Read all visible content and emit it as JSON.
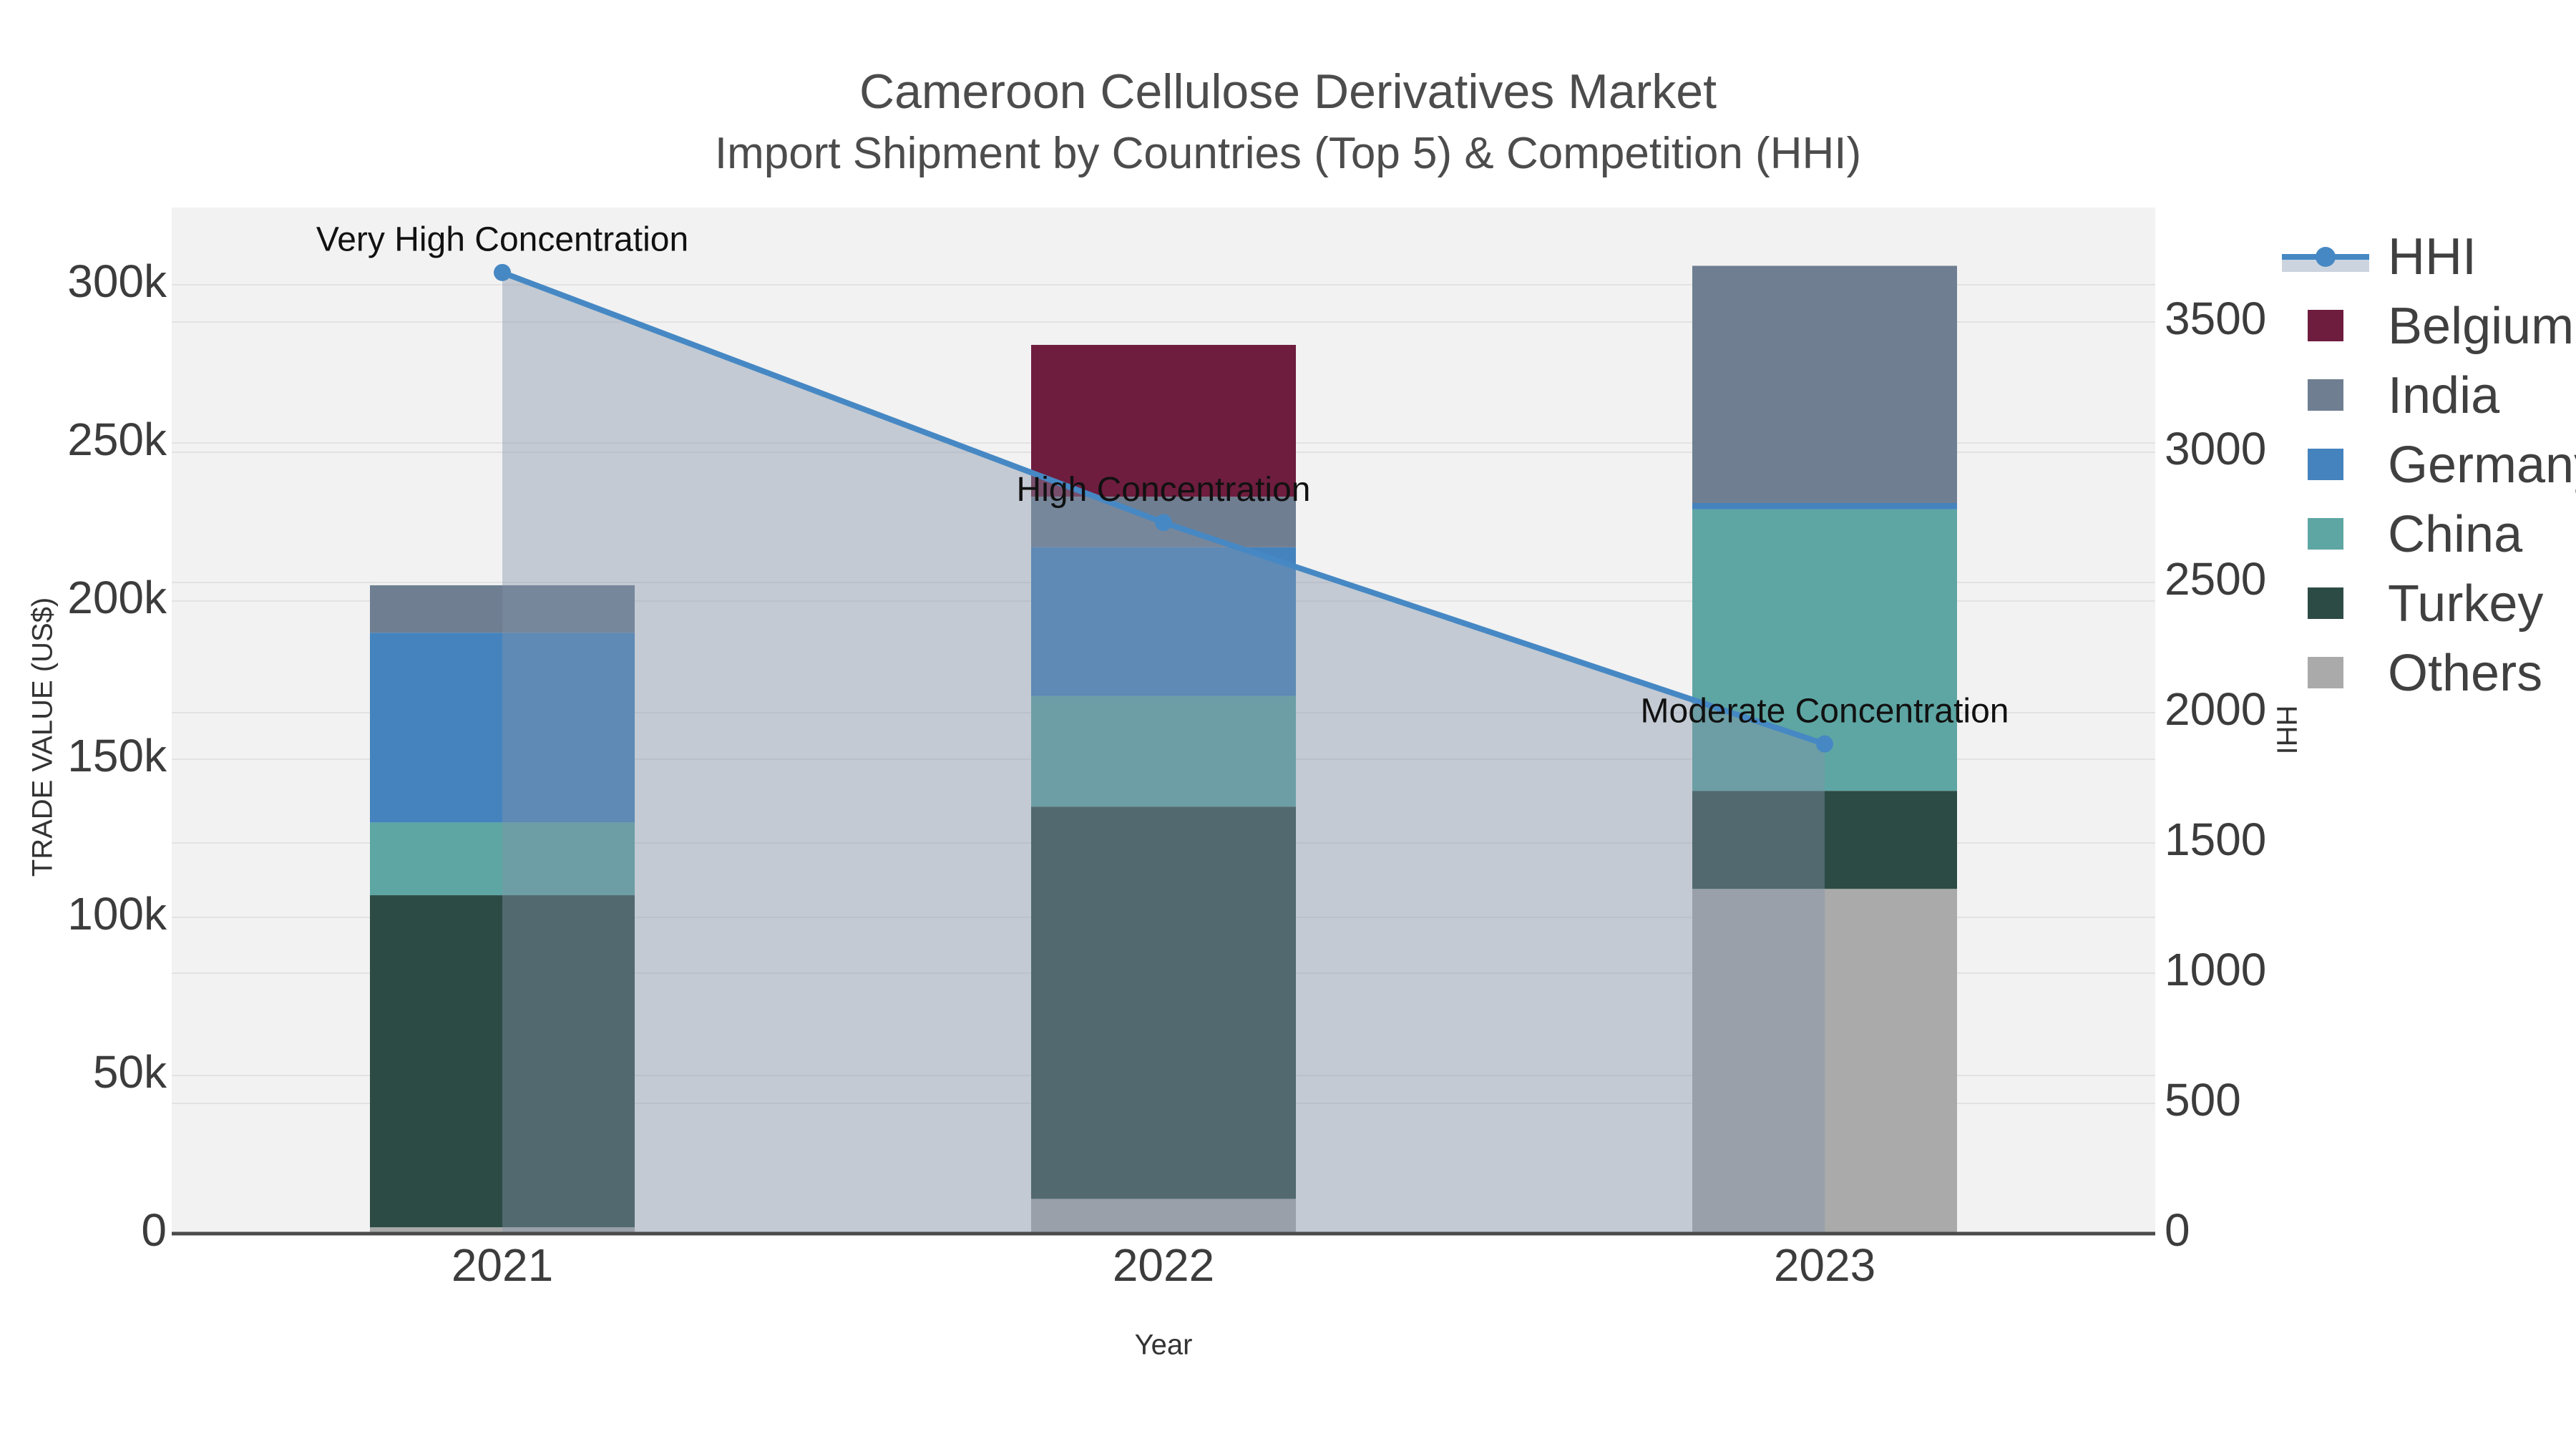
{
  "title": "Cameroon Cellulose Derivatives Market",
  "subtitle": "Import Shipment by Countries (Top 5) & Competition (HHI)",
  "colors": {
    "page_bg": "#ffffff",
    "plot_bg": "#f2f2f2",
    "gridline": "#e2e2e2",
    "axis_line": "#4a4a4a",
    "tick_label": "#3c3c3c",
    "axis_title": "#333333",
    "title_text": "#4c4c4c",
    "annotation_text": "#111111",
    "legend_text": "#404040",
    "hhi_line": "#4688c4",
    "hhi_area": "rgba(130,148,170,0.42)",
    "hhi_area_legend": "#ccd4df"
  },
  "chart_data": {
    "type": "bar",
    "subtype": "stacked-bar-with-line",
    "categories": [
      "2021",
      "2022",
      "2023"
    ],
    "series": [
      {
        "name": "Belgium",
        "type": "bar",
        "color": "#6e1d3e",
        "values": [
          0,
          48000,
          0
        ]
      },
      {
        "name": "India",
        "type": "bar",
        "color": "#6f7e91",
        "values": [
          15000,
          16000,
          75000
        ]
      },
      {
        "name": "Germany",
        "type": "bar",
        "color": "#4483be",
        "values": [
          60000,
          47000,
          2000
        ]
      },
      {
        "name": "China",
        "type": "bar",
        "color": "#5ea6a3",
        "values": [
          23000,
          35000,
          89000
        ]
      },
      {
        "name": "Turkey",
        "type": "bar",
        "color": "#2d4b45",
        "values": [
          105000,
          124000,
          31000
        ]
      },
      {
        "name": "Others",
        "type": "bar",
        "color": "#a9aaa9",
        "values": [
          2000,
          11000,
          109000
        ]
      }
    ],
    "stack_totals": [
      205000,
      281000,
      306000
    ],
    "line_series": {
      "name": "HHI",
      "type": "line",
      "color": "#4688c4",
      "values": [
        3690,
        2730,
        1880
      ],
      "axis": "right"
    },
    "annotations": [
      {
        "text": "Very High Concentration",
        "category_index": 0
      },
      {
        "text": "High Concentration",
        "category_index": 1
      },
      {
        "text": "Moderate Concentration",
        "category_index": 2
      }
    ],
    "xlabel": "Year",
    "ylabel": "TRADE VALUE (US$)",
    "y2label": "HHI",
    "ylim": [
      0,
      300000
    ],
    "y2lim": [
      0,
      3500
    ],
    "yticks": [
      "0",
      "50k",
      "100k",
      "150k",
      "200k",
      "250k",
      "300k"
    ],
    "ytick_values": [
      0,
      50000,
      100000,
      150000,
      200000,
      250000,
      300000
    ],
    "y2ticks": [
      "0",
      "500",
      "1000",
      "1500",
      "2000",
      "2500",
      "3000",
      "3500"
    ],
    "y2tick_values": [
      0,
      500,
      1000,
      1500,
      2000,
      2500,
      3000,
      3500
    ],
    "grid": true,
    "legend_position": "right",
    "legend_items": [
      "HHI",
      "Belgium",
      "India",
      "Germany",
      "China",
      "Turkey",
      "Others"
    ]
  }
}
